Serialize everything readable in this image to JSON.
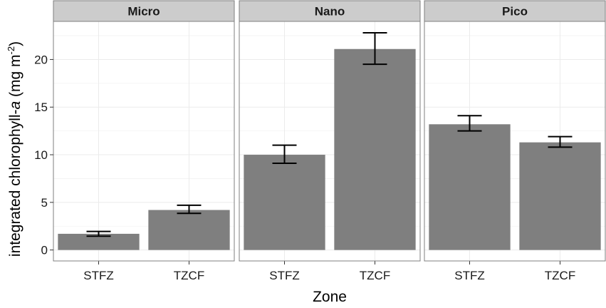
{
  "chart_data": {
    "type": "bar",
    "facets": [
      "Micro",
      "Nano",
      "Pico"
    ],
    "categories": [
      "STFZ",
      "TZCF"
    ],
    "series": [
      {
        "facet": "Micro",
        "values": [
          1.7,
          4.2
        ],
        "error_low": [
          1.45,
          3.85
        ],
        "error_high": [
          1.95,
          4.7
        ]
      },
      {
        "facet": "Nano",
        "values": [
          10.0,
          21.1
        ],
        "error_low": [
          9.1,
          19.5
        ],
        "error_high": [
          11.0,
          22.8
        ]
      },
      {
        "facet": "Pico",
        "values": [
          13.2,
          11.3
        ],
        "error_low": [
          12.5,
          10.8
        ],
        "error_high": [
          14.1,
          11.9
        ]
      }
    ],
    "y_ticks": [
      0,
      5,
      10,
      15,
      20
    ],
    "ylim": [
      -1.15,
      24.0
    ],
    "xlabel": "Zone",
    "ylabel_prefix": "integrated chlorophyll-",
    "ylabel_italic": "a",
    "ylabel_units": " (mg m",
    "ylabel_sup": "-2",
    "ylabel_close": ")",
    "grid": true,
    "colors": {
      "bar": "#7f7f7f",
      "panel_bg": "#ffffff",
      "grid": "#ebebeb",
      "strip_bg": "#cccccc",
      "border": "#7f7f7f",
      "errorbar": "#000000"
    }
  }
}
